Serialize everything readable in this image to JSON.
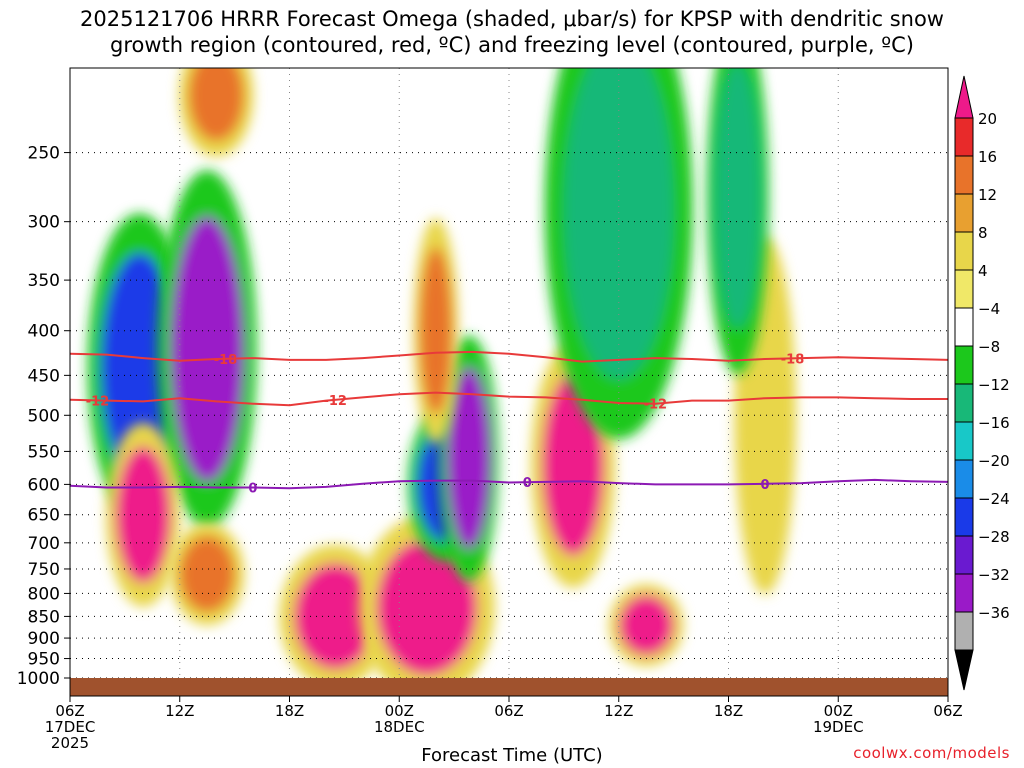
{
  "title": {
    "line1": "2025121706 HRRR Forecast Omega (shaded, μbar/s) for KPSP with dendritic snow",
    "line2": "growth region (contoured, red, ºC) and freezing level (contoured, purple, ºC)"
  },
  "credit": "coolwx.com/models",
  "chart_data": {
    "type": "heatmap",
    "xlabel": "Forecast Time (UTC)",
    "ylabel": "",
    "x_ticks": [
      {
        "hour": 0,
        "label": "06Z",
        "sub1": "17DEC",
        "sub2": "2025"
      },
      {
        "hour": 6,
        "label": "12Z"
      },
      {
        "hour": 12,
        "label": "18Z"
      },
      {
        "hour": 18,
        "label": "00Z",
        "sub1": "18DEC"
      },
      {
        "hour": 24,
        "label": "06Z"
      },
      {
        "hour": 30,
        "label": "12Z"
      },
      {
        "hour": 36,
        "label": "18Z"
      },
      {
        "hour": 42,
        "label": "00Z",
        "sub1": "19DEC"
      },
      {
        "hour": 48,
        "label": "06Z"
      }
    ],
    "y_ticks": [
      "250",
      "300",
      "350",
      "400",
      "450",
      "500",
      "550",
      "600",
      "650",
      "700",
      "750",
      "800",
      "850",
      "900",
      "950",
      "1000"
    ],
    "y_axis": {
      "min_hPa": 200,
      "max_hPa": 1000,
      "scale": "log-pressure"
    },
    "x_range_hours": [
      0,
      48
    ],
    "grid": "dotted",
    "colorbar": {
      "labels": [
        "20",
        "16",
        "12",
        "8",
        "4",
        "−4",
        "−8",
        "−12",
        "−16",
        "−20",
        "−24",
        "−28",
        "−32",
        "−36"
      ],
      "colors": [
        "#ee1a8a",
        "#e82a2a",
        "#e8732a",
        "#e8a030",
        "#e8d64a",
        "#f0e868",
        "#ffffff",
        "#1cc81c",
        "#18b878",
        "#18c8c8",
        "#1a8ce8",
        "#1a3ae8",
        "#6a1ad0",
        "#9a1ac8",
        "#b0b0b0",
        "#000000"
      ]
    },
    "contours": [
      {
        "label": "-18",
        "color": "#e83a3a",
        "points": [
          [
            0,
            425
          ],
          [
            2,
            426
          ],
          [
            4,
            430
          ],
          [
            6,
            433
          ],
          [
            8,
            431
          ],
          [
            10,
            430
          ],
          [
            12,
            432
          ],
          [
            14,
            432
          ],
          [
            16,
            430
          ],
          [
            18,
            427
          ],
          [
            20,
            424
          ],
          [
            22,
            423
          ],
          [
            24,
            425
          ],
          [
            26,
            429
          ],
          [
            28,
            434
          ],
          [
            30,
            432
          ],
          [
            32,
            430
          ],
          [
            34,
            431
          ],
          [
            36,
            433
          ],
          [
            38,
            431
          ],
          [
            40,
            430
          ],
          [
            42,
            429
          ],
          [
            44,
            430
          ],
          [
            46,
            431
          ],
          [
            48,
            432
          ]
        ]
      },
      {
        "label": "-12",
        "color": "#e83a3a",
        "points": [
          [
            0,
            480
          ],
          [
            2,
            481
          ],
          [
            4,
            482
          ],
          [
            6,
            478
          ],
          [
            8,
            482
          ],
          [
            10,
            485
          ],
          [
            12,
            487
          ],
          [
            14,
            481
          ],
          [
            16,
            477
          ],
          [
            18,
            473
          ],
          [
            20,
            471
          ],
          [
            22,
            473
          ],
          [
            24,
            476
          ],
          [
            26,
            477
          ],
          [
            28,
            480
          ],
          [
            30,
            484
          ],
          [
            32,
            485
          ],
          [
            34,
            481
          ],
          [
            36,
            481
          ],
          [
            38,
            478
          ],
          [
            40,
            477
          ],
          [
            42,
            477
          ],
          [
            44,
            478
          ],
          [
            46,
            479
          ],
          [
            48,
            479
          ]
        ]
      },
      {
        "label": "0",
        "color": "#8c1ab4",
        "points": [
          [
            0,
            602
          ],
          [
            2,
            605
          ],
          [
            4,
            605
          ],
          [
            6,
            604
          ],
          [
            8,
            605
          ],
          [
            10,
            605
          ],
          [
            12,
            606
          ],
          [
            14,
            604
          ],
          [
            16,
            599
          ],
          [
            18,
            595
          ],
          [
            20,
            594
          ],
          [
            22,
            594
          ],
          [
            24,
            597
          ],
          [
            26,
            596
          ],
          [
            28,
            595
          ],
          [
            30,
            598
          ],
          [
            32,
            600
          ],
          [
            34,
            600
          ],
          [
            36,
            600
          ],
          [
            38,
            599
          ],
          [
            40,
            598
          ],
          [
            42,
            595
          ],
          [
            44,
            593
          ],
          [
            46,
            595
          ],
          [
            48,
            596
          ]
        ]
      }
    ],
    "contour_label_positions": [
      {
        "label": "-18",
        "hour": 8.5
      },
      {
        "label": "-18",
        "hour": 39.5
      },
      {
        "label": "-12",
        "hour": 1.5
      },
      {
        "label": "-12",
        "hour": 14.5
      },
      {
        "label": "-12",
        "hour": 32
      },
      {
        "label": "0",
        "hour": 10
      },
      {
        "label": "0",
        "hour": 25
      },
      {
        "label": "0",
        "hour": 38
      }
    ],
    "cells": [
      {
        "x": 3.8,
        "p": 440,
        "w": 4.2,
        "h": 0.3,
        "v": -20
      },
      {
        "x": 7.5,
        "p": 420,
        "w": 4.0,
        "h": 0.35,
        "v": -28
      },
      {
        "x": 4.0,
        "p": 650,
        "w": 3.0,
        "h": 0.18,
        "v": 20
      },
      {
        "x": 7.5,
        "p": 760,
        "w": 3.0,
        "h": 0.1,
        "v": 14
      },
      {
        "x": 14.5,
        "p": 850,
        "w": 4.5,
        "h": 0.14,
        "v": 20
      },
      {
        "x": 19.5,
        "p": 830,
        "w": 5.5,
        "h": 0.18,
        "v": 20
      },
      {
        "x": 20.5,
        "p": 600,
        "w": 3.0,
        "h": 0.15,
        "v": -20
      },
      {
        "x": 21.8,
        "p": 560,
        "w": 2.4,
        "h": 0.24,
        "v": -28
      },
      {
        "x": 20.0,
        "p": 400,
        "w": 1.8,
        "h": 0.22,
        "v": 12
      },
      {
        "x": 27.5,
        "p": 570,
        "w": 3.4,
        "h": 0.24,
        "v": 20
      },
      {
        "x": 31.5,
        "p": 870,
        "w": 3.0,
        "h": 0.08,
        "v": 20
      },
      {
        "x": 38.0,
        "p": 500,
        "w": 2.5,
        "h": 0.35,
        "v": 6
      },
      {
        "x": 30.0,
        "p": 290,
        "w": 6.0,
        "h": 0.45,
        "v": -10
      },
      {
        "x": 36.5,
        "p": 280,
        "w": 2.5,
        "h": 0.35,
        "v": -10
      },
      {
        "x": 8.0,
        "p": 215,
        "w": 3.0,
        "h": 0.12,
        "v": 12
      }
    ]
  }
}
